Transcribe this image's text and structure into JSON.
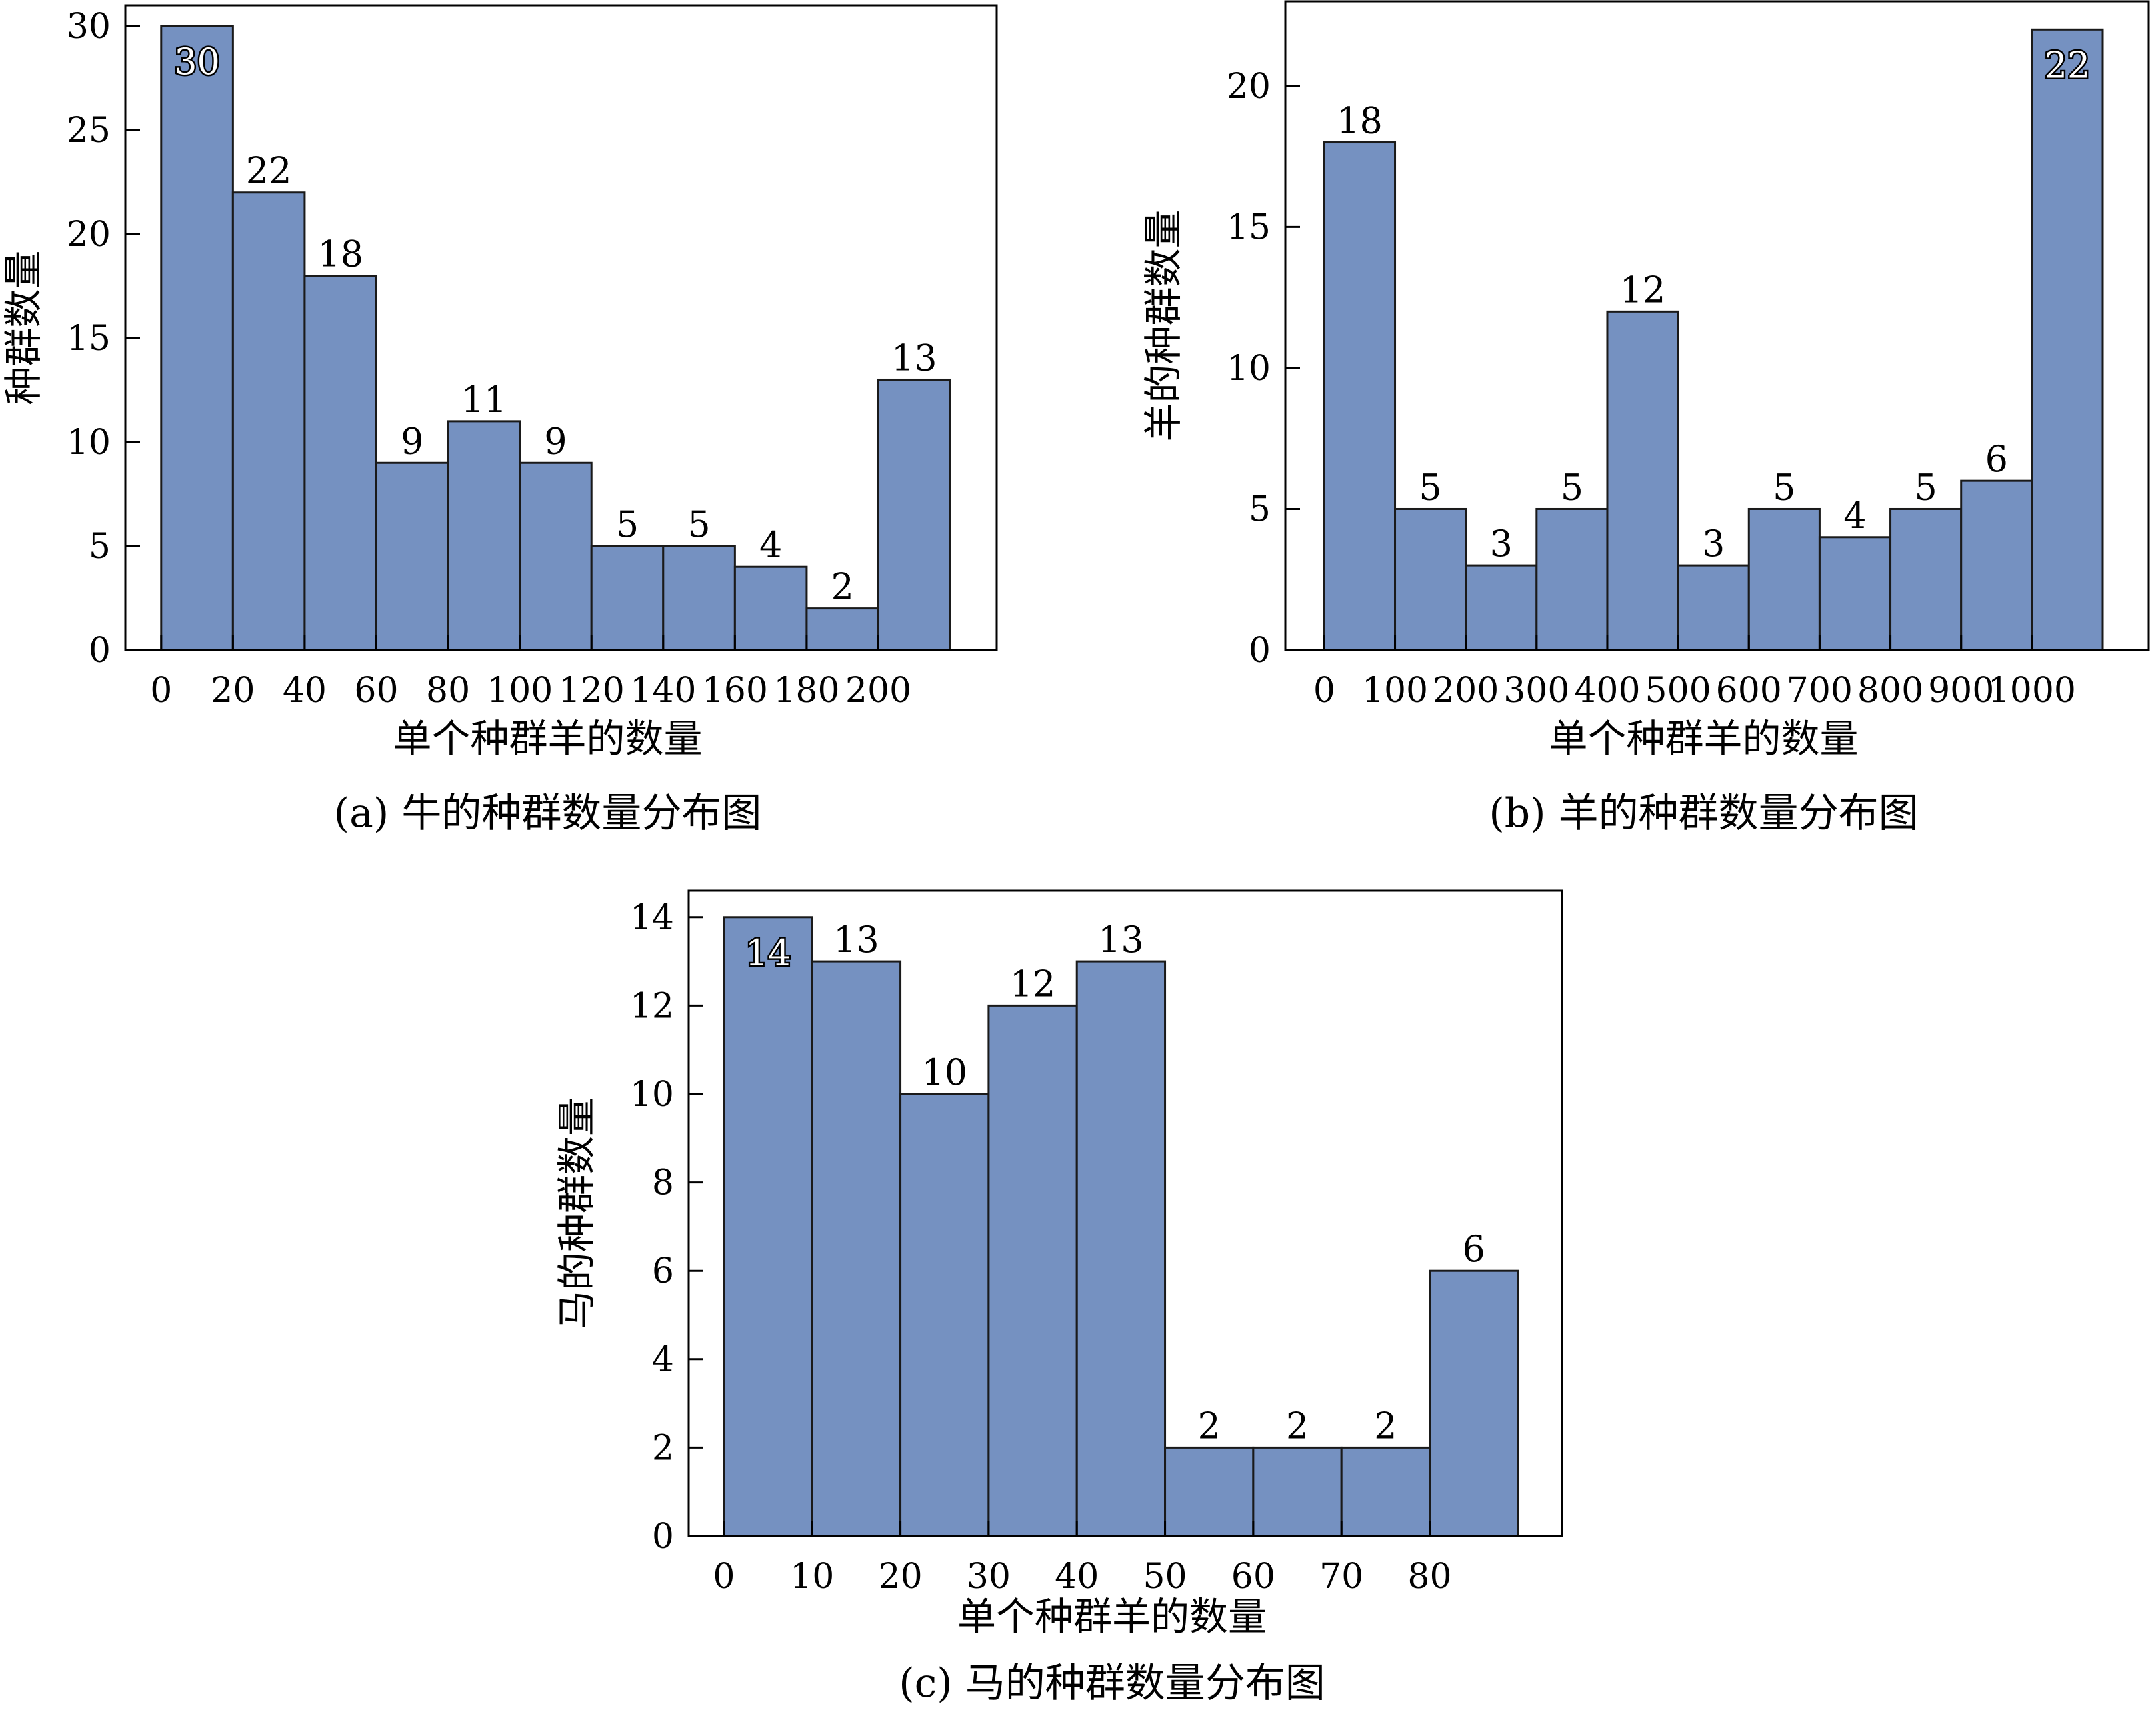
{
  "chart_data": [
    {
      "id": "a",
      "type": "bar",
      "caption": "(a) 牛的种群数量分布图",
      "xlabel": "单个种群羊的数量",
      "ylabel": "种群数量",
      "x_ticks": [
        "0",
        "20",
        "40",
        "60",
        "80",
        "100",
        "120",
        "140",
        "160",
        "180",
        "200"
      ],
      "bin_width": 20,
      "bin_starts": [
        0,
        20,
        40,
        60,
        80,
        100,
        120,
        140,
        160,
        180,
        200
      ],
      "values": [
        30,
        22,
        18,
        9,
        11,
        9,
        5,
        5,
        4,
        2,
        13
      ],
      "ylim": [
        0,
        31
      ],
      "y_ticks": [
        0,
        5,
        10,
        15,
        20,
        25,
        30
      ],
      "xlim": [
        -10,
        233
      ],
      "bar_color": "#7591c1",
      "grid": false
    },
    {
      "id": "b",
      "type": "bar",
      "caption": "(b) 羊的种群数量分布图",
      "xlabel": "单个种群羊的数量",
      "ylabel": "羊的种群数量",
      "x_ticks": [
        "0",
        "100",
        "200",
        "300",
        "400",
        "500",
        "600",
        "700",
        "800",
        "900",
        "1000"
      ],
      "bin_width": 100,
      "bin_starts": [
        0,
        100,
        200,
        300,
        400,
        500,
        600,
        700,
        800,
        900,
        1000
      ],
      "values": [
        18,
        5,
        3,
        5,
        12,
        3,
        5,
        4,
        5,
        6,
        22
      ],
      "ylim": [
        0,
        23
      ],
      "y_ticks": [
        0,
        5,
        10,
        15,
        20
      ],
      "xlim": [
        -55,
        1165
      ],
      "bar_color": "#7591c1",
      "grid": false
    },
    {
      "id": "c",
      "type": "bar",
      "caption": "(c) 马的种群数量分布图",
      "xlabel": "单个种群羊的数量",
      "ylabel": "马的种群数量",
      "x_ticks": [
        "0",
        "10",
        "20",
        "30",
        "40",
        "50",
        "60",
        "70",
        "80"
      ],
      "bin_width": 10,
      "bin_starts": [
        0,
        10,
        20,
        30,
        40,
        50,
        60,
        70,
        80
      ],
      "values": [
        14,
        13,
        10,
        12,
        13,
        2,
        2,
        2,
        6
      ],
      "ylim": [
        0,
        14.6
      ],
      "y_ticks": [
        0,
        2,
        4,
        6,
        8,
        10,
        12,
        14
      ],
      "xlim": [
        -4,
        95
      ],
      "bar_color": "#7591c1",
      "grid": false
    }
  ]
}
